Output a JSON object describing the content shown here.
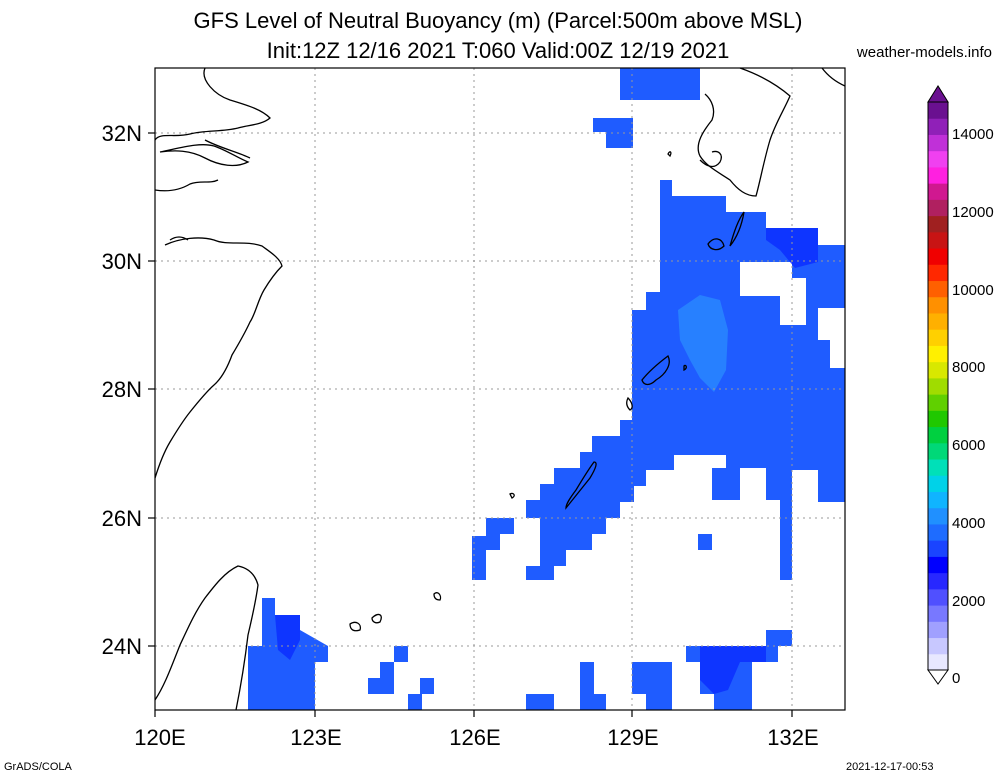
{
  "header": {
    "title_line1": "GFS Level of Neutral Buoyancy (m) (Parcel:500m above MSL)",
    "title_line2": "Init:12Z 12/16 2021 T:060 Valid:00Z 12/19 2021",
    "site": "weather-models.info"
  },
  "footer": {
    "left": "GrADS/COLA",
    "right": "2021-12-17-00:53"
  },
  "map": {
    "lon_range": [
      120,
      133
    ],
    "lat_range": [
      23,
      33
    ],
    "x_ticks": [
      "120E",
      "123E",
      "126E",
      "129E",
      "132E"
    ],
    "y_ticks": [
      "32N",
      "30N",
      "28N",
      "26N",
      "24N"
    ]
  },
  "colorbar": {
    "labels": [
      "0",
      "2000",
      "4000",
      "6000",
      "8000",
      "10000",
      "12000",
      "14000"
    ],
    "max_value": 15000,
    "colors": [
      "#e8e8ff",
      "#c8c8ff",
      "#a0a0ff",
      "#7878ff",
      "#5050ff",
      "#2828ff",
      "#0000ff",
      "#1a44ff",
      "#1e6cff",
      "#2090ff",
      "#10b4ff",
      "#00d2e8",
      "#00e0b8",
      "#00d878",
      "#00d040",
      "#20c800",
      "#60d000",
      "#a0dc00",
      "#d8e800",
      "#fff000",
      "#ffd000",
      "#ffb000",
      "#ff9000",
      "#ff6000",
      "#ff2800",
      "#f00000",
      "#c81414",
      "#a02020",
      "#b02060",
      "#d01890",
      "#ff20e0",
      "#f040f0",
      "#c030d8",
      "#9020b8",
      "#6a1090"
    ]
  }
}
